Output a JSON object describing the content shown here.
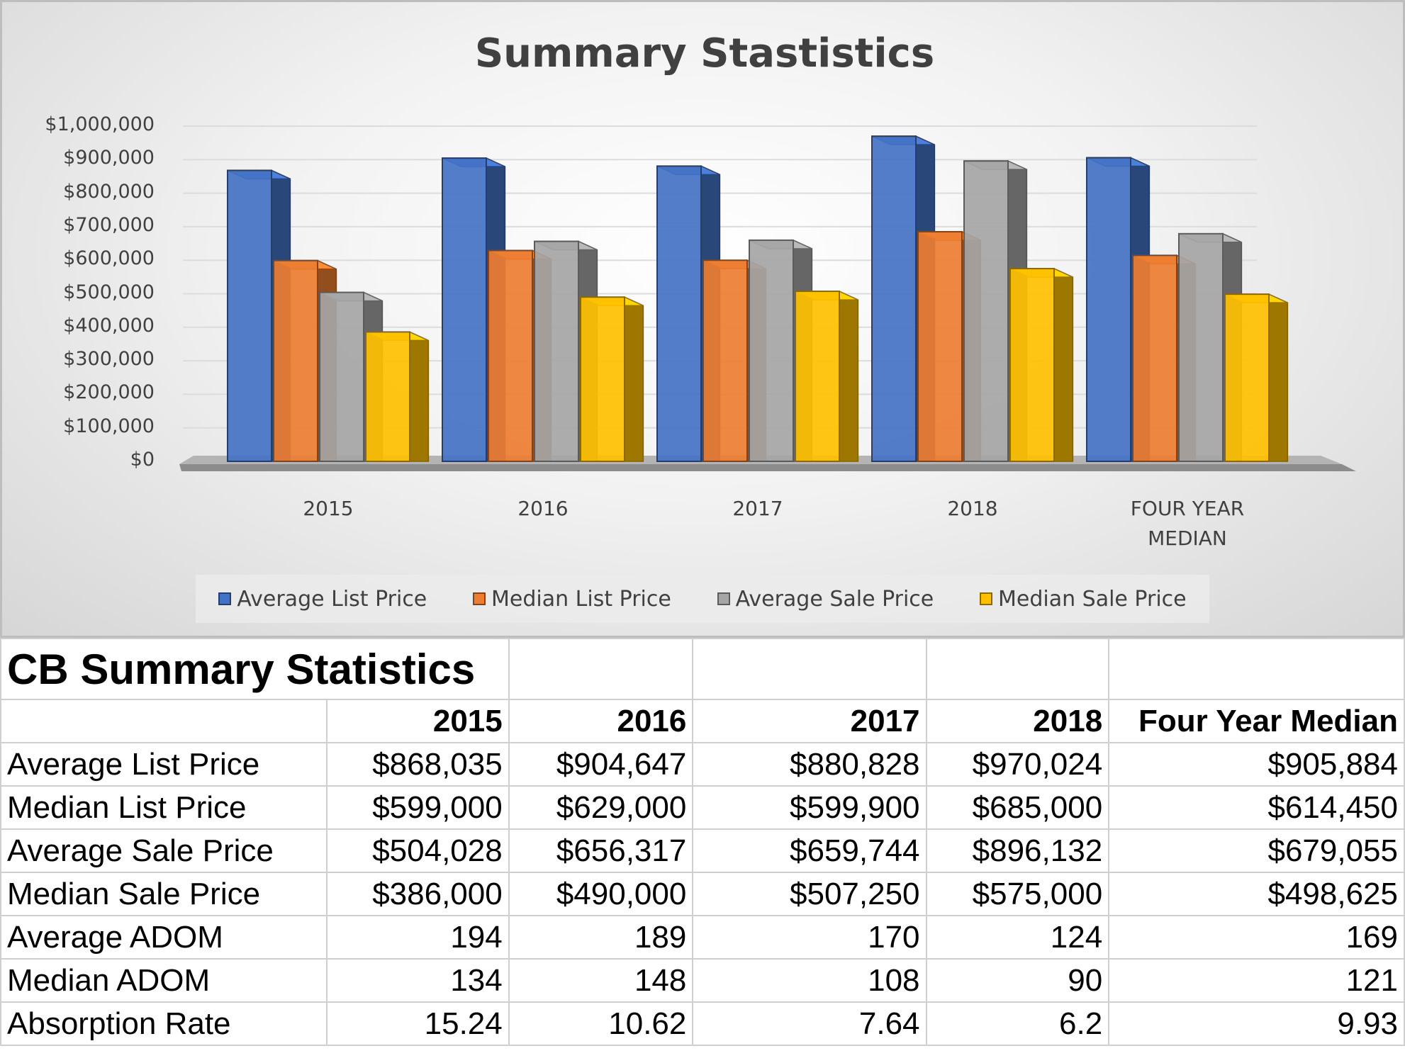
{
  "chart_data": {
    "type": "bar",
    "title": "Summary Stastistics",
    "categories": [
      "2015",
      "2016",
      "2017",
      "2018",
      "FOUR YEAR MEDIAN"
    ],
    "y_ticks": [
      "$1,000,000",
      "$900,000",
      "$800,000",
      "$700,000",
      "$600,000",
      "$500,000",
      "$400,000",
      "$300,000",
      "$200,000",
      "$100,000",
      "$0"
    ],
    "ylim": [
      0,
      1000000
    ],
    "grid": true,
    "legend_placement": "bottom",
    "series": [
      {
        "name": "Average List Price",
        "color": "#4472c4",
        "values": [
          868035,
          904647,
          880828,
          970024,
          905884
        ]
      },
      {
        "name": "Median List Price",
        "color": "#ed7d31",
        "values": [
          599000,
          629000,
          599900,
          685000,
          614450
        ]
      },
      {
        "name": "Average Sale Price",
        "color": "#a5a5a5",
        "values": [
          504028,
          656317,
          659744,
          896132,
          679055
        ]
      },
      {
        "name": "Median Sale Price",
        "color": "#ffc000",
        "values": [
          386000,
          490000,
          507250,
          575000,
          498625
        ]
      }
    ]
  },
  "table": {
    "title": "CB Summary Statistics",
    "headers": [
      "2015",
      "2016",
      "2017",
      "2018",
      "Four Year Median"
    ],
    "rows": [
      {
        "label": "Average List Price",
        "cells": [
          "$868,035",
          "$904,647",
          "$880,828",
          "$970,024",
          "$905,884"
        ]
      },
      {
        "label": "Median List Price",
        "cells": [
          "$599,000",
          "$629,000",
          "$599,900",
          "$685,000",
          "$614,450"
        ]
      },
      {
        "label": "Average Sale Price",
        "cells": [
          "$504,028",
          "$656,317",
          "$659,744",
          "$896,132",
          "$679,055"
        ]
      },
      {
        "label": "Median Sale Price",
        "cells": [
          "$386,000",
          "$490,000",
          "$507,250",
          "$575,000",
          "$498,625"
        ]
      },
      {
        "label": "Average ADOM",
        "cells": [
          "194",
          "189",
          "170",
          "124",
          "169"
        ]
      },
      {
        "label": "Median ADOM",
        "cells": [
          "134",
          "148",
          "108",
          "90",
          "121"
        ]
      },
      {
        "label": "Absorption Rate",
        "cells": [
          "15.24",
          "10.62",
          "7.64",
          "6.2",
          "9.93"
        ]
      }
    ]
  }
}
